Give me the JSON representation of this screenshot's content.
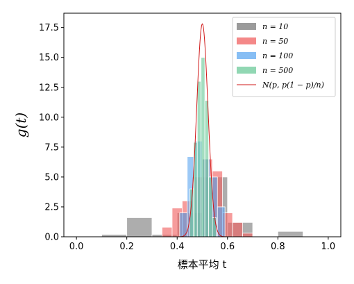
{
  "chart_data": {
    "type": "bar",
    "xlabel": "標本平均 t",
    "ylabel": "g(t)",
    "xlim": [
      -0.05,
      1.05
    ],
    "ylim": [
      0,
      18.7
    ],
    "xticks": [
      "0.0",
      "0.2",
      "0.4",
      "0.6",
      "0.8",
      "1.0"
    ],
    "xtick_values": [
      0.0,
      0.2,
      0.4,
      0.6,
      0.8,
      1.0
    ],
    "yticks": [
      "0.0",
      "2.5",
      "5.0",
      "7.5",
      "10.0",
      "12.5",
      "15.0",
      "17.5"
    ],
    "ytick_values": [
      0.0,
      2.5,
      5.0,
      7.5,
      10.0,
      12.5,
      15.0,
      17.5
    ],
    "grid": false,
    "legend_position": "top-right",
    "series": [
      {
        "name": "n = 10",
        "color": "#7a7a7a",
        "bins": [
          {
            "x0": 0.1,
            "x1": 0.2,
            "y": 0.2
          },
          {
            "x0": 0.2,
            "x1": 0.3,
            "y": 1.6
          },
          {
            "x0": 0.3,
            "x1": 0.4,
            "y": 0.2
          },
          {
            "x0": 0.4,
            "x1": 0.5,
            "y": 2.0
          },
          {
            "x0": 0.5,
            "x1": 0.6,
            "y": 5.0
          },
          {
            "x0": 0.6,
            "x1": 0.7,
            "y": 1.2
          },
          {
            "x0": 0.8,
            "x1": 0.9,
            "y": 0.45
          }
        ]
      },
      {
        "name": "n = 50",
        "color": "#f06060",
        "bins": [
          {
            "x0": 0.34,
            "x1": 0.38,
            "y": 0.8
          },
          {
            "x0": 0.38,
            "x1": 0.42,
            "y": 2.4
          },
          {
            "x0": 0.42,
            "x1": 0.46,
            "y": 3.0
          },
          {
            "x0": 0.46,
            "x1": 0.5,
            "y": 5.0
          },
          {
            "x0": 0.5,
            "x1": 0.54,
            "y": 6.5
          },
          {
            "x0": 0.54,
            "x1": 0.58,
            "y": 5.5
          },
          {
            "x0": 0.58,
            "x1": 0.62,
            "y": 2.0
          },
          {
            "x0": 0.62,
            "x1": 0.66,
            "y": 1.2
          },
          {
            "x0": 0.66,
            "x1": 0.7,
            "y": 0.3
          }
        ]
      },
      {
        "name": "n = 100",
        "color": "#5fa8f0",
        "bins": [
          {
            "x0": 0.41,
            "x1": 0.44,
            "y": 2.0
          },
          {
            "x0": 0.44,
            "x1": 0.47,
            "y": 6.7
          },
          {
            "x0": 0.47,
            "x1": 0.5,
            "y": 8.0
          },
          {
            "x0": 0.5,
            "x1": 0.53,
            "y": 6.5
          },
          {
            "x0": 0.53,
            "x1": 0.56,
            "y": 5.0
          },
          {
            "x0": 0.56,
            "x1": 0.59,
            "y": 2.5
          }
        ]
      },
      {
        "name": "n = 500",
        "color": "#6cc99a",
        "bins": [
          {
            "x0": 0.45,
            "x1": 0.465,
            "y": 4.0
          },
          {
            "x0": 0.465,
            "x1": 0.48,
            "y": 7.9
          },
          {
            "x0": 0.48,
            "x1": 0.495,
            "y": 13.0
          },
          {
            "x0": 0.495,
            "x1": 0.51,
            "y": 15.0
          },
          {
            "x0": 0.51,
            "x1": 0.525,
            "y": 11.4
          },
          {
            "x0": 0.525,
            "x1": 0.54,
            "y": 5.0
          },
          {
            "x0": 0.54,
            "x1": 0.555,
            "y": 1.6
          }
        ]
      },
      {
        "name": "N(p, p(1 − p)/n)",
        "type": "line",
        "color": "#d01818",
        "mean": 0.5,
        "sd": 0.0224,
        "x_range": [
          0.0,
          1.0
        ]
      }
    ]
  }
}
